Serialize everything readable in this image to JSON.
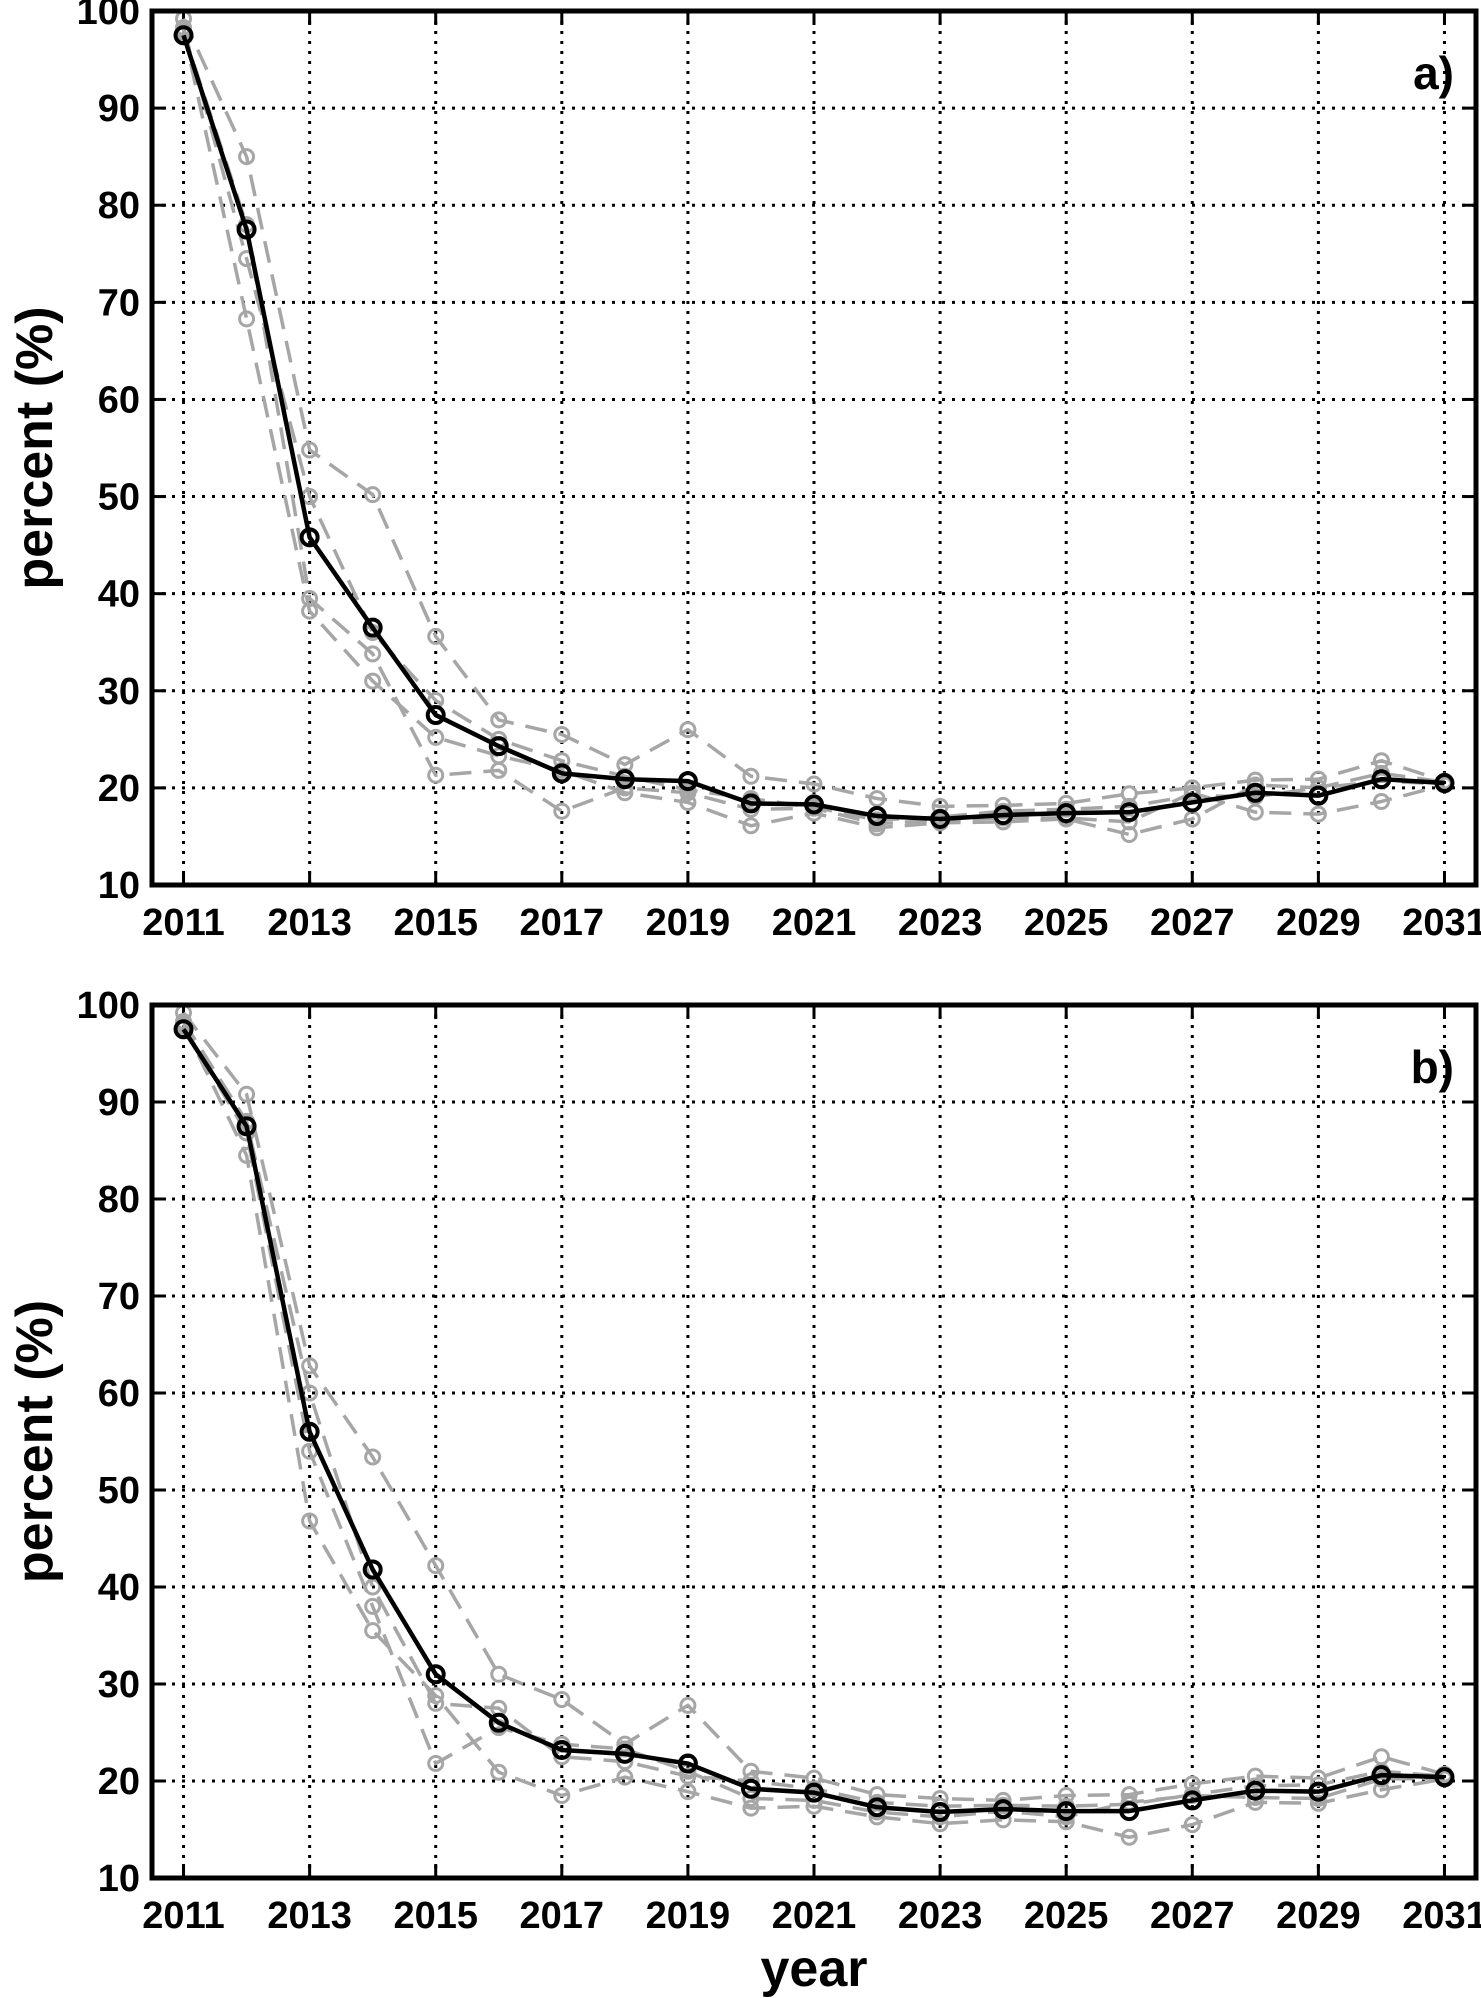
{
  "chart_data": [
    {
      "type": "line",
      "panel_label": "a)",
      "xlabel": "",
      "ylabel": "percent (%)",
      "xlim": [
        2010.5,
        2031.5
      ],
      "ylim": [
        10,
        100
      ],
      "xticks": [
        2011,
        2013,
        2015,
        2017,
        2019,
        2021,
        2023,
        2025,
        2027,
        2029,
        2031
      ],
      "yticks": [
        10,
        20,
        30,
        40,
        50,
        60,
        70,
        80,
        90,
        100
      ],
      "grid": true,
      "x": [
        2011,
        2012,
        2013,
        2014,
        2015,
        2016,
        2017,
        2018,
        2019,
        2020,
        2021,
        2022,
        2023,
        2024,
        2025,
        2026,
        2027,
        2028,
        2029,
        2030,
        2031
      ],
      "series": [
        {
          "color": "#000000",
          "style": "solid",
          "values": [
            97.5,
            77.5,
            45.8,
            36.5,
            27.5,
            24.3,
            21.5,
            20.9,
            20.7,
            18.4,
            18.3,
            17.1,
            16.8,
            17.2,
            17.4,
            17.5,
            18.5,
            19.5,
            19.2,
            20.9,
            20.5
          ]
        },
        {
          "color": "#a6a6a6",
          "style": "dashed",
          "values": [
            99.2,
            85.0,
            54.8,
            50.2,
            35.6,
            27.0,
            25.5,
            22.4,
            26.0,
            21.2,
            20.4,
            18.9,
            18.1,
            18.2,
            18.4,
            19.4,
            20.0,
            20.8,
            20.9,
            22.8,
            20.7
          ]
        },
        {
          "color": "#a6a6a6",
          "style": "dashed",
          "values": [
            98.0,
            68.3,
            38.2,
            31.0,
            25.2,
            23.3,
            21.8,
            19.5,
            18.5,
            16.1,
            17.4,
            15.9,
            16.4,
            16.5,
            16.8,
            15.2,
            16.8,
            20.3,
            20.0,
            20.7,
            20.4
          ]
        },
        {
          "color": "#a6a6a6",
          "style": "dashed",
          "values": [
            97.8,
            78.0,
            39.5,
            33.8,
            21.3,
            21.8,
            17.6,
            20.0,
            19.5,
            17.8,
            17.9,
            16.3,
            16.7,
            16.9,
            16.9,
            16.5,
            19.5,
            17.5,
            17.3,
            18.6,
            20.3
          ]
        },
        {
          "color": "#a6a6a6",
          "style": "dashed",
          "values": [
            98.3,
            74.5,
            50.0,
            36.0,
            29.0,
            25.0,
            22.8,
            21.2,
            19.8,
            18.9,
            18.0,
            16.7,
            17.0,
            17.6,
            17.8,
            18.1,
            19.2,
            19.1,
            20.0,
            21.5,
            20.6
          ]
        }
      ]
    },
    {
      "type": "line",
      "panel_label": "b)",
      "xlabel": "year",
      "ylabel": "percent (%)",
      "xlim": [
        2010.5,
        2031.5
      ],
      "ylim": [
        10,
        100
      ],
      "xticks": [
        2011,
        2013,
        2015,
        2017,
        2019,
        2021,
        2023,
        2025,
        2027,
        2029,
        2031
      ],
      "yticks": [
        10,
        20,
        30,
        40,
        50,
        60,
        70,
        80,
        90,
        100
      ],
      "grid": true,
      "x": [
        2011,
        2012,
        2013,
        2014,
        2015,
        2016,
        2017,
        2018,
        2019,
        2020,
        2021,
        2022,
        2023,
        2024,
        2025,
        2026,
        2027,
        2028,
        2029,
        2030,
        2031
      ],
      "series": [
        {
          "color": "#000000",
          "style": "solid",
          "values": [
            97.5,
            87.5,
            56.0,
            41.8,
            31.0,
            26.0,
            23.2,
            22.8,
            21.8,
            19.2,
            18.8,
            17.3,
            16.8,
            17.1,
            16.9,
            16.9,
            18.0,
            19.0,
            18.9,
            20.6,
            20.4
          ]
        },
        {
          "color": "#a6a6a6",
          "style": "dashed",
          "values": [
            99.2,
            90.8,
            62.8,
            53.4,
            42.2,
            31.0,
            28.4,
            23.8,
            27.8,
            21.0,
            20.3,
            18.6,
            18.2,
            18.0,
            18.5,
            18.6,
            19.7,
            20.5,
            20.3,
            22.5,
            20.7
          ]
        },
        {
          "color": "#a6a6a6",
          "style": "dashed",
          "values": [
            98.0,
            84.5,
            46.8,
            35.5,
            28.8,
            20.9,
            18.5,
            20.4,
            18.9,
            17.2,
            17.4,
            16.3,
            15.6,
            16.0,
            15.8,
            14.2,
            15.5,
            17.8,
            17.7,
            19.1,
            20.2
          ]
        },
        {
          "color": "#a6a6a6",
          "style": "dashed",
          "values": [
            97.8,
            86.8,
            54.0,
            38.0,
            21.8,
            25.5,
            23.8,
            23.3,
            21.0,
            18.2,
            18.0,
            16.8,
            16.3,
            16.9,
            16.3,
            17.8,
            18.5,
            18.3,
            18.2,
            20.2,
            20.3
          ]
        },
        {
          "color": "#a6a6a6",
          "style": "dashed",
          "values": [
            98.3,
            88.0,
            60.0,
            40.0,
            28.0,
            27.5,
            22.5,
            22.0,
            20.5,
            20.0,
            19.2,
            17.8,
            17.4,
            17.5,
            17.4,
            17.6,
            18.6,
            19.5,
            19.6,
            21.0,
            20.5
          ]
        }
      ]
    }
  ]
}
